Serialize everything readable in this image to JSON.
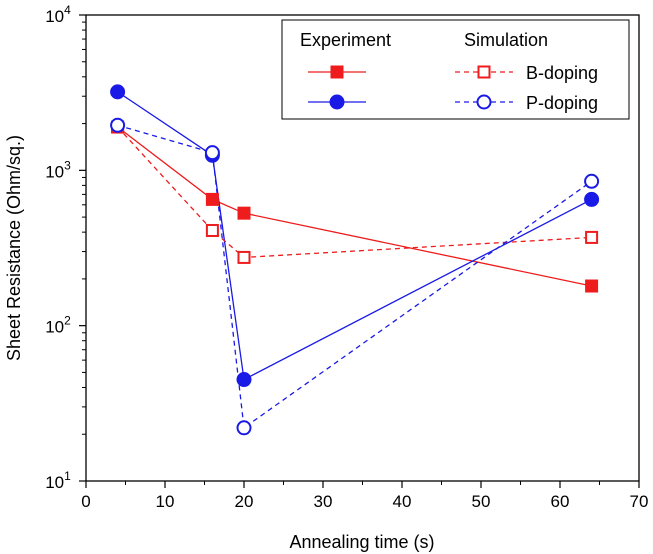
{
  "chart_data": {
    "type": "line",
    "xlabel": "Annealing time (s)",
    "ylabel": "Sheet Resistance (Ohm/sq.)",
    "xlim": [
      0,
      70
    ],
    "ylim": [
      10,
      10000
    ],
    "yscale": "log",
    "grid": false,
    "legend_placement": "top-right",
    "x_ticks": [
      0,
      10,
      20,
      30,
      40,
      50,
      60,
      70
    ],
    "y_ticks": [
      {
        "value": 10,
        "base": "10",
        "exp": "1"
      },
      {
        "value": 100,
        "base": "10",
        "exp": "2"
      },
      {
        "value": 1000,
        "base": "10",
        "exp": "3"
      },
      {
        "value": 10000,
        "base": "10",
        "exp": "4"
      }
    ],
    "legend": {
      "header_experiment": "Experiment",
      "header_simulation": "Simulation",
      "row1_label": "B-doping",
      "row2_label": "P-doping"
    },
    "series": [
      {
        "key": "exp_b",
        "color": "#ee1c1c",
        "marker": "square",
        "filled": true,
        "dashed": false,
        "x": [
          4,
          16,
          20,
          64
        ],
        "y": [
          1900,
          650,
          530,
          180
        ]
      },
      {
        "key": "exp_p",
        "color": "#1a1ae6",
        "marker": "circle",
        "filled": true,
        "dashed": false,
        "x": [
          4,
          16,
          20,
          64
        ],
        "y": [
          3200,
          1250,
          45,
          650
        ]
      },
      {
        "key": "sim_b",
        "color": "#ee1c1c",
        "marker": "square",
        "filled": false,
        "dashed": true,
        "x": [
          4,
          16,
          20,
          64
        ],
        "y": [
          1900,
          410,
          275,
          370
        ]
      },
      {
        "key": "sim_p",
        "color": "#1a1ae6",
        "marker": "circle",
        "filled": false,
        "dashed": true,
        "x": [
          4,
          16,
          20,
          64
        ],
        "y": [
          1950,
          1300,
          22,
          850
        ]
      }
    ]
  }
}
